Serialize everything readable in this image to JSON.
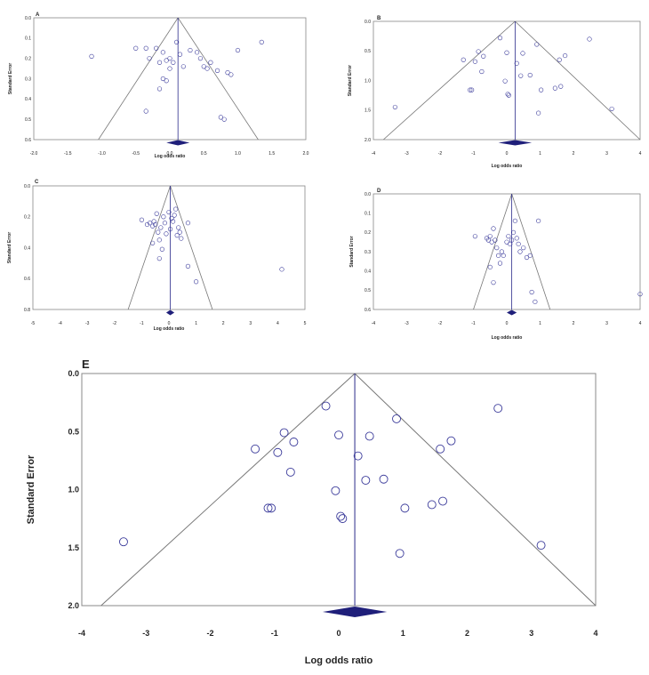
{
  "chart_data": [
    {
      "type": "scatter",
      "panel": "A",
      "xlabel": "Log odds ratio",
      "ylabel": "Standard Error",
      "xlim": [
        -2.0,
        2.0
      ],
      "ylim": [
        0.0,
        0.6
      ],
      "xticks": [
        -2.0,
        -1.5,
        -1.0,
        -0.5,
        0.0,
        0.5,
        1.0,
        1.5,
        2.0
      ],
      "xtick_labels": [
        "-2.0",
        "-1.5",
        "-1.0",
        "-0.5",
        "0.0",
        "0.5",
        "1.0",
        "1.5",
        "2.0"
      ],
      "yticks": [
        0.0,
        0.1,
        0.2,
        0.3,
        0.4,
        0.5,
        0.6
      ],
      "ytick_labels": [
        "0.0",
        "0.1",
        "0.2",
        "0.3",
        "0.4",
        "0.5",
        "0.6"
      ],
      "pooled_estimate": 0.12,
      "funnel_base": [
        -1.05,
        1.3
      ],
      "diamond": [
        -0.05,
        0.29
      ],
      "points": [
        {
          "x": -1.15,
          "y": 0.19
        },
        {
          "x": -0.5,
          "y": 0.15
        },
        {
          "x": -0.35,
          "y": 0.15
        },
        {
          "x": -0.3,
          "y": 0.2
        },
        {
          "x": -0.2,
          "y": 0.15
        },
        {
          "x": -0.15,
          "y": 0.22
        },
        {
          "x": -0.1,
          "y": 0.17
        },
        {
          "x": -0.05,
          "y": 0.21
        },
        {
          "x": 0.0,
          "y": 0.2
        },
        {
          "x": 0.05,
          "y": 0.22
        },
        {
          "x": 0.1,
          "y": 0.12
        },
        {
          "x": 0.15,
          "y": 0.18
        },
        {
          "x": 0.2,
          "y": 0.24
        },
        {
          "x": -0.1,
          "y": 0.3
        },
        {
          "x": -0.05,
          "y": 0.31
        },
        {
          "x": -0.15,
          "y": 0.35
        },
        {
          "x": 0.0,
          "y": 0.25
        },
        {
          "x": 0.3,
          "y": 0.16
        },
        {
          "x": 0.4,
          "y": 0.17
        },
        {
          "x": 0.45,
          "y": 0.2
        },
        {
          "x": 0.5,
          "y": 0.24
        },
        {
          "x": 0.55,
          "y": 0.25
        },
        {
          "x": 0.6,
          "y": 0.22
        },
        {
          "x": 0.7,
          "y": 0.26
        },
        {
          "x": 0.75,
          "y": 0.49
        },
        {
          "x": 0.8,
          "y": 0.5
        },
        {
          "x": 0.85,
          "y": 0.27
        },
        {
          "x": 0.9,
          "y": 0.28
        },
        {
          "x": 1.0,
          "y": 0.16
        },
        {
          "x": 1.35,
          "y": 0.12
        },
        {
          "x": -0.35,
          "y": 0.46
        }
      ]
    },
    {
      "type": "scatter",
      "panel": "B",
      "xlabel": "Log odds ratio",
      "ylabel": "Standard Error",
      "xlim": [
        -4,
        4
      ],
      "ylim": [
        0.0,
        2.0
      ],
      "xticks": [
        -4,
        -3,
        -2,
        -1,
        0,
        1,
        2,
        3,
        4
      ],
      "xtick_labels": [
        "-4",
        "-3",
        "-2",
        "-1",
        "0",
        "1",
        "2",
        "3",
        "4"
      ],
      "yticks": [
        0.0,
        0.5,
        1.0,
        1.5,
        2.0
      ],
      "ytick_labels": [
        "0.0",
        "0.5",
        "1.0",
        "1.5",
        "2.0"
      ],
      "pooled_estimate": 0.25,
      "funnel_base": [
        -3.7,
        4.0
      ],
      "diamond": [
        -0.25,
        0.75
      ],
      "points": [
        {
          "x": -3.35,
          "y": 1.45
        },
        {
          "x": -1.3,
          "y": 0.65
        },
        {
          "x": -1.1,
          "y": 1.16
        },
        {
          "x": -1.05,
          "y": 1.16
        },
        {
          "x": -0.95,
          "y": 0.68
        },
        {
          "x": -0.85,
          "y": 0.51
        },
        {
          "x": -0.75,
          "y": 0.85
        },
        {
          "x": -0.7,
          "y": 0.59
        },
        {
          "x": -0.2,
          "y": 0.28
        },
        {
          "x": -0.05,
          "y": 1.01
        },
        {
          "x": 0.0,
          "y": 0.53
        },
        {
          "x": 0.03,
          "y": 1.23
        },
        {
          "x": 0.06,
          "y": 1.25
        },
        {
          "x": 0.3,
          "y": 0.71
        },
        {
          "x": 0.42,
          "y": 0.92
        },
        {
          "x": 0.48,
          "y": 0.54
        },
        {
          "x": 0.7,
          "y": 0.91
        },
        {
          "x": 0.9,
          "y": 0.39
        },
        {
          "x": 0.95,
          "y": 1.55
        },
        {
          "x": 1.03,
          "y": 1.16
        },
        {
          "x": 1.45,
          "y": 1.13
        },
        {
          "x": 1.58,
          "y": 0.65
        },
        {
          "x": 1.62,
          "y": 1.1
        },
        {
          "x": 1.75,
          "y": 0.58
        },
        {
          "x": 2.48,
          "y": 0.3
        },
        {
          "x": 3.15,
          "y": 1.48
        }
      ]
    },
    {
      "type": "scatter",
      "panel": "C",
      "xlabel": "Log odds ratio",
      "ylabel": "Standard Error",
      "xlim": [
        -5,
        5
      ],
      "ylim": [
        0.0,
        0.8
      ],
      "xticks": [
        -5,
        -4,
        -3,
        -2,
        -1,
        0,
        1,
        2,
        3,
        4,
        5
      ],
      "xtick_labels": [
        "-5",
        "-4",
        "-3",
        "-2",
        "-1",
        "0",
        "1",
        "2",
        "3",
        "4",
        "5"
      ],
      "yticks": [
        0.0,
        0.2,
        0.4,
        0.6,
        0.8
      ],
      "ytick_labels": [
        "0.0",
        "0.2",
        "0.4",
        "0.6",
        "0.8"
      ],
      "pooled_estimate": 0.05,
      "funnel_base": [
        -1.5,
        1.6
      ],
      "diamond": [
        -0.1,
        0.2
      ],
      "points": [
        {
          "x": -1.0,
          "y": 0.22
        },
        {
          "x": -0.8,
          "y": 0.25
        },
        {
          "x": -0.7,
          "y": 0.24
        },
        {
          "x": -0.6,
          "y": 0.26
        },
        {
          "x": -0.55,
          "y": 0.23
        },
        {
          "x": -0.5,
          "y": 0.25
        },
        {
          "x": -0.45,
          "y": 0.18
        },
        {
          "x": -0.4,
          "y": 0.3
        },
        {
          "x": -0.35,
          "y": 0.35
        },
        {
          "x": -0.3,
          "y": 0.27
        },
        {
          "x": -0.25,
          "y": 0.41
        },
        {
          "x": -0.2,
          "y": 0.2
        },
        {
          "x": -0.15,
          "y": 0.24
        },
        {
          "x": -0.1,
          "y": 0.31
        },
        {
          "x": 0.0,
          "y": 0.17
        },
        {
          "x": 0.05,
          "y": 0.28
        },
        {
          "x": 0.1,
          "y": 0.21
        },
        {
          "x": 0.15,
          "y": 0.23
        },
        {
          "x": 0.2,
          "y": 0.19
        },
        {
          "x": 0.25,
          "y": 0.15
        },
        {
          "x": 0.3,
          "y": 0.32
        },
        {
          "x": 0.35,
          "y": 0.27
        },
        {
          "x": 0.4,
          "y": 0.3
        },
        {
          "x": 0.45,
          "y": 0.34
        },
        {
          "x": 0.7,
          "y": 0.24
        },
        {
          "x": 0.7,
          "y": 0.52
        },
        {
          "x": 1.0,
          "y": 0.62
        },
        {
          "x": -0.6,
          "y": 0.37
        },
        {
          "x": -0.35,
          "y": 0.47
        },
        {
          "x": 4.15,
          "y": 0.54
        }
      ]
    },
    {
      "type": "scatter",
      "panel": "D",
      "xlabel": "Log odds ratio",
      "ylabel": "Standard Error",
      "xlim": [
        -4,
        4
      ],
      "ylim": [
        0.0,
        0.6
      ],
      "xticks": [
        -4,
        -3,
        -2,
        -1,
        0,
        1,
        2,
        3,
        4
      ],
      "xtick_labels": [
        "-4",
        "-3",
        "-2",
        "-1",
        "0",
        "1",
        "2",
        "3",
        "4"
      ],
      "yticks": [
        0.0,
        0.1,
        0.2,
        0.3,
        0.4,
        0.5,
        0.6
      ],
      "ytick_labels": [
        "0.0",
        "0.1",
        "0.2",
        "0.3",
        "0.4",
        "0.5",
        "0.6"
      ],
      "pooled_estimate": 0.15,
      "funnel_base": [
        -1.0,
        1.3
      ],
      "diamond": [
        0.0,
        0.3
      ],
      "points": [
        {
          "x": -0.95,
          "y": 0.22
        },
        {
          "x": -0.6,
          "y": 0.23
        },
        {
          "x": -0.55,
          "y": 0.24
        },
        {
          "x": -0.5,
          "y": 0.22
        },
        {
          "x": -0.45,
          "y": 0.25
        },
        {
          "x": -0.4,
          "y": 0.18
        },
        {
          "x": -0.35,
          "y": 0.24
        },
        {
          "x": -0.3,
          "y": 0.28
        },
        {
          "x": -0.25,
          "y": 0.32
        },
        {
          "x": -0.2,
          "y": 0.36
        },
        {
          "x": -0.15,
          "y": 0.3
        },
        {
          "x": -0.1,
          "y": 0.32
        },
        {
          "x": 0.0,
          "y": 0.25
        },
        {
          "x": 0.05,
          "y": 0.22
        },
        {
          "x": 0.1,
          "y": 0.26
        },
        {
          "x": 0.15,
          "y": 0.24
        },
        {
          "x": 0.2,
          "y": 0.2
        },
        {
          "x": 0.25,
          "y": 0.14
        },
        {
          "x": 0.3,
          "y": 0.23
        },
        {
          "x": 0.35,
          "y": 0.26
        },
        {
          "x": 0.4,
          "y": 0.3
        },
        {
          "x": 0.5,
          "y": 0.28
        },
        {
          "x": 0.6,
          "y": 0.33
        },
        {
          "x": 0.7,
          "y": 0.32
        },
        {
          "x": 0.75,
          "y": 0.51
        },
        {
          "x": 0.85,
          "y": 0.56
        },
        {
          "x": 0.95,
          "y": 0.14
        },
        {
          "x": -0.4,
          "y": 0.46
        },
        {
          "x": 4.0,
          "y": 0.52
        },
        {
          "x": -0.5,
          "y": 0.38
        }
      ]
    },
    {
      "type": "scatter",
      "panel": "E",
      "xlabel": "Log odds ratio",
      "ylabel": "Standard Error",
      "xlim": [
        -4,
        4
      ],
      "ylim": [
        0.0,
        2.0
      ],
      "xticks": [
        -4,
        -3,
        -2,
        -1,
        0,
        1,
        2,
        3,
        4
      ],
      "xtick_labels": [
        "-4",
        "-3",
        "-2",
        "-1",
        "0",
        "1",
        "2",
        "3",
        "4"
      ],
      "yticks": [
        0.0,
        0.5,
        1.0,
        1.5,
        2.0
      ],
      "ytick_labels": [
        "0.0",
        "0.5",
        "1.0",
        "1.5",
        "2.0"
      ],
      "pooled_estimate": 0.25,
      "funnel_base": [
        -3.7,
        4.0
      ],
      "diamond": [
        -0.25,
        0.75
      ],
      "points": [
        {
          "x": -3.35,
          "y": 1.45
        },
        {
          "x": -1.3,
          "y": 0.65
        },
        {
          "x": -1.1,
          "y": 1.16
        },
        {
          "x": -1.05,
          "y": 1.16
        },
        {
          "x": -0.95,
          "y": 0.68
        },
        {
          "x": -0.85,
          "y": 0.51
        },
        {
          "x": -0.75,
          "y": 0.85
        },
        {
          "x": -0.7,
          "y": 0.59
        },
        {
          "x": -0.2,
          "y": 0.28
        },
        {
          "x": -0.05,
          "y": 1.01
        },
        {
          "x": 0.0,
          "y": 0.53
        },
        {
          "x": 0.03,
          "y": 1.23
        },
        {
          "x": 0.06,
          "y": 1.25
        },
        {
          "x": 0.3,
          "y": 0.71
        },
        {
          "x": 0.42,
          "y": 0.92
        },
        {
          "x": 0.48,
          "y": 0.54
        },
        {
          "x": 0.7,
          "y": 0.91
        },
        {
          "x": 0.9,
          "y": 0.39
        },
        {
          "x": 0.95,
          "y": 1.55
        },
        {
          "x": 1.03,
          "y": 1.16
        },
        {
          "x": 1.45,
          "y": 1.13
        },
        {
          "x": 1.58,
          "y": 0.65
        },
        {
          "x": 1.62,
          "y": 1.1
        },
        {
          "x": 1.75,
          "y": 0.58
        },
        {
          "x": 2.48,
          "y": 0.3
        },
        {
          "x": 3.15,
          "y": 1.48
        }
      ]
    }
  ],
  "colors": {
    "marker": "#3a3a9a",
    "pooled_line": "#2a2a8a",
    "diamond": "#1f1f7a",
    "funnel": "#777777",
    "frame": "#888888"
  }
}
